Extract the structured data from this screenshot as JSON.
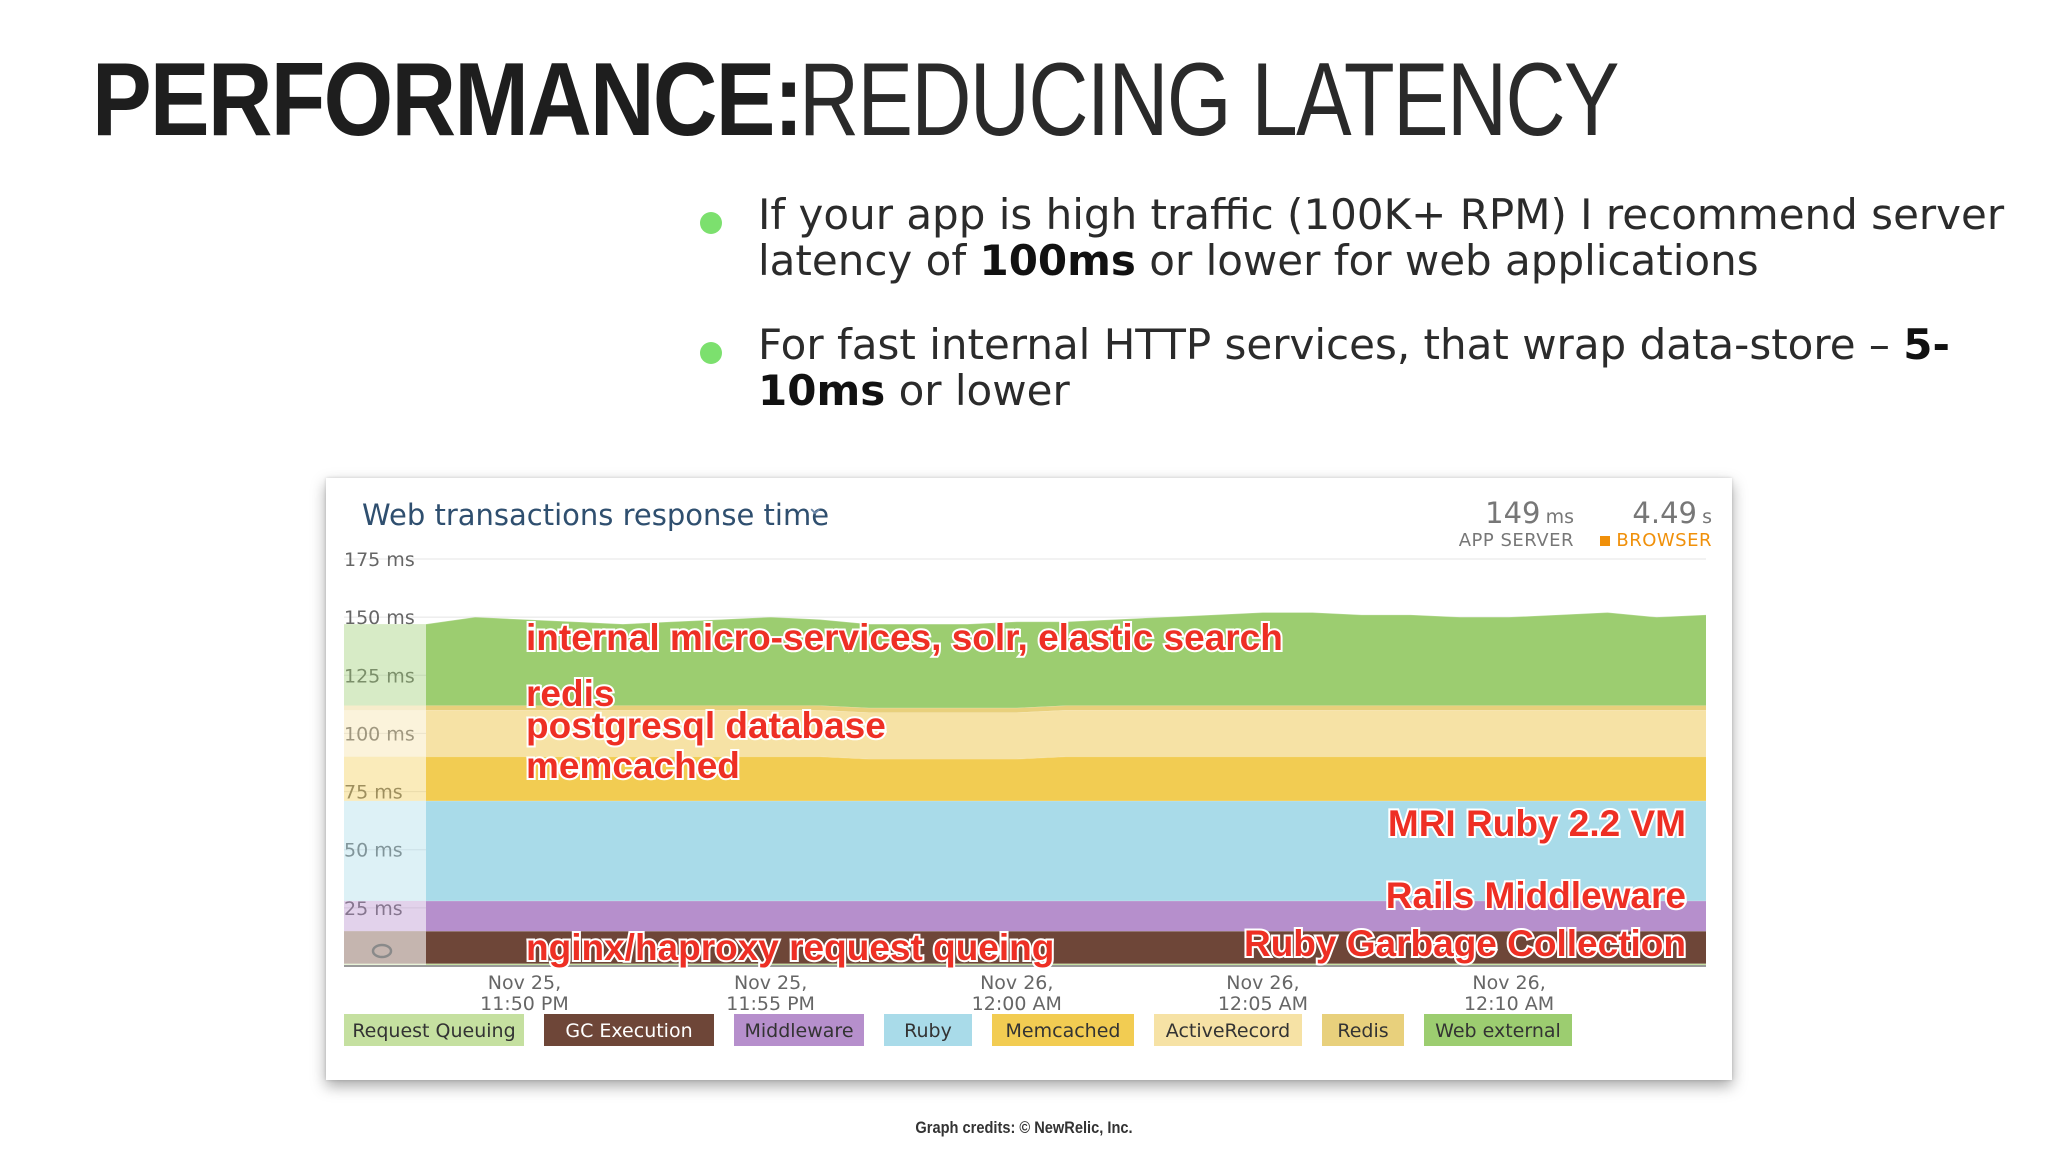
{
  "slide": {
    "title_bold": "PERFORMANCE:",
    "title_light": "REDUCING LATENCY",
    "bullets": [
      {
        "before": "If your app is high traffic (100K+ RPM) I recommend server latency of ",
        "bold": "100ms",
        "after": " or lower for web applications"
      },
      {
        "before": "For fast internal HTTP services, that wrap data-store – ",
        "bold": "5-10ms",
        "after": " or lower"
      }
    ],
    "credits": "Graph credits: © NewRelic, Inc."
  },
  "panel": {
    "title": "Web transactions response time",
    "app_server": {
      "value": "149",
      "unit": "ms",
      "label": "APP SERVER"
    },
    "browser": {
      "value": "4.49",
      "unit": "s",
      "label": "BROWSER"
    }
  },
  "colors": {
    "bullet": "#7ce06e",
    "annotation": "#ee2f24",
    "browser": "#f0900a"
  },
  "chart_data": {
    "type": "area",
    "stacked": true,
    "yunit": "ms",
    "ylim": [
      0,
      175
    ],
    "yticks": [
      175,
      150,
      125,
      100,
      75,
      50,
      25
    ],
    "ytick_labels": [
      "175 ms",
      "150 ms",
      "125 ms",
      "100 ms",
      "75 ms",
      "50 ms",
      "25 ms"
    ],
    "xtick_labels": [
      [
        "Nov 25,",
        "11:50 PM"
      ],
      [
        "Nov 25,",
        "11:55 PM"
      ],
      [
        "Nov 26,",
        "12:00 AM"
      ],
      [
        "Nov 26,",
        "12:05 AM"
      ],
      [
        "Nov 26,",
        "12:10 AM"
      ]
    ],
    "xtick_positions": [
      2,
      7,
      12,
      17,
      22
    ],
    "n_points": 27,
    "series": [
      {
        "name": "Request Queuing",
        "color": "#c5e0a0",
        "values": [
          1,
          1,
          1,
          1,
          1,
          1,
          1,
          1,
          1,
          1,
          1,
          1,
          1,
          1,
          1,
          1,
          1,
          1,
          1,
          1,
          1,
          1,
          1,
          1,
          1,
          1,
          1
        ]
      },
      {
        "name": "GC Execution",
        "color": "#6e4638",
        "values": [
          14,
          14,
          14,
          14,
          14,
          14,
          14,
          14,
          14,
          14,
          14,
          14,
          14,
          14,
          14,
          14,
          14,
          14,
          14,
          14,
          14,
          14,
          14,
          14,
          14,
          14,
          14
        ]
      },
      {
        "name": "Middleware",
        "color": "#b68fcc",
        "values": [
          13,
          13,
          13,
          13,
          13,
          13,
          13,
          13,
          13,
          13,
          13,
          13,
          13,
          13,
          13,
          13,
          13,
          13,
          13,
          13,
          13,
          13,
          13,
          13,
          13,
          13,
          13
        ]
      },
      {
        "name": "Ruby",
        "color": "#a9dbe9",
        "values": [
          43,
          43,
          43,
          43,
          43,
          43,
          43,
          43,
          43,
          43,
          43,
          43,
          43,
          43,
          43,
          43,
          43,
          43,
          43,
          43,
          43,
          43,
          43,
          43,
          43,
          43,
          43
        ]
      },
      {
        "name": "Memcached",
        "color": "#f2cc52",
        "values": [
          19,
          19,
          19,
          19,
          19,
          19,
          19,
          19,
          19,
          18,
          18,
          18,
          18,
          19,
          19,
          19,
          19,
          19,
          19,
          19,
          19,
          19,
          19,
          19,
          19,
          19,
          19
        ]
      },
      {
        "name": "ActiveRecord",
        "color": "#f6e2a5",
        "values": [
          20,
          20,
          20,
          20,
          20,
          20,
          20,
          20,
          20,
          20,
          20,
          20,
          20,
          20,
          20,
          20,
          20,
          20,
          20,
          20,
          20,
          20,
          20,
          20,
          20,
          20,
          20
        ]
      },
      {
        "name": "Redis",
        "color": "#e8d07c",
        "values": [
          2,
          2,
          2,
          2,
          2,
          2,
          2,
          2,
          2,
          2,
          2,
          2,
          2,
          2,
          2,
          2,
          2,
          2,
          2,
          2,
          2,
          2,
          2,
          2,
          2,
          2,
          2
        ]
      },
      {
        "name": "Web external",
        "color": "#9ccd70",
        "values": [
          35,
          38,
          37,
          36,
          35,
          36,
          37,
          38,
          37,
          36,
          36,
          36,
          37,
          36,
          37,
          38,
          39,
          40,
          40,
          39,
          39,
          38,
          38,
          39,
          40,
          38,
          39
        ]
      }
    ],
    "annotations": [
      {
        "text": "internal micro-services, solr, elastic search",
        "series": "Web external"
      },
      {
        "text": "redis",
        "series": "Redis"
      },
      {
        "text": "postgresql database",
        "series": "ActiveRecord"
      },
      {
        "text": "memcached",
        "series": "Memcached"
      },
      {
        "text": "MRI Ruby 2.2 VM",
        "series": "Ruby"
      },
      {
        "text": "Rails Middleware",
        "series": "Middleware"
      },
      {
        "text": "Ruby Garbage Collection",
        "series": "GC Execution"
      },
      {
        "text": "nginx/haproxy request queing",
        "series": "Request Queuing"
      }
    ]
  }
}
